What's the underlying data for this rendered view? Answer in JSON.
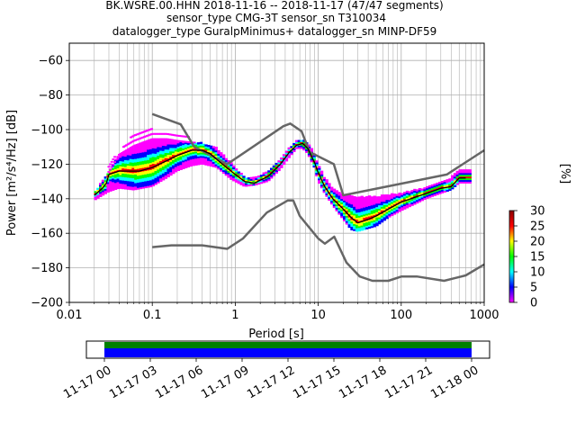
{
  "chart_data": {
    "type": "heatmap",
    "title_lines": [
      "BK.WSRE.00.HHN   2018-11-16 -- 2018-11-17  (47/47 segments)",
      "sensor_type CMG-3T sensor_sn T310034",
      "datalogger_type GuralpMinimus+ datalogger_sn MINP-DF59"
    ],
    "xlabel": "Period [s]",
    "ylabel": "Power [m²/s⁴/Hz] [dB]",
    "x_scale": "log",
    "xlim": [
      0.01,
      1000
    ],
    "ylim": [
      -200,
      -50
    ],
    "x_ticks": [
      {
        "value": 0.01,
        "label": "0.01"
      },
      {
        "value": 0.1,
        "label": "0.1"
      },
      {
        "value": 1,
        "label": "1"
      },
      {
        "value": 10,
        "label": "10"
      },
      {
        "value": 100,
        "label": "100"
      },
      {
        "value": 1000,
        "label": "1000"
      }
    ],
    "y_ticks": [
      {
        "value": -60,
        "label": "−60"
      },
      {
        "value": -80,
        "label": "−80"
      },
      {
        "value": -100,
        "label": "−100"
      },
      {
        "value": -120,
        "label": "−120"
      },
      {
        "value": -140,
        "label": "−140"
      },
      {
        "value": -160,
        "label": "−160"
      },
      {
        "value": -180,
        "label": "−180"
      },
      {
        "value": -200,
        "label": "−200"
      }
    ],
    "grid": true,
    "colorbar": {
      "label": "[%]",
      "range": [
        0,
        30
      ],
      "ticks": [
        {
          "value": 0,
          "label": "0"
        },
        {
          "value": 5,
          "label": "5"
        },
        {
          "value": 10,
          "label": "10"
        },
        {
          "value": 15,
          "label": "15"
        },
        {
          "value": 20,
          "label": "20"
        },
        {
          "value": 25,
          "label": "25"
        },
        {
          "value": 30,
          "label": "30"
        }
      ],
      "colors": [
        "#ffffff",
        "#ff00ff",
        "#0000ff",
        "#00ffff",
        "#00ff00",
        "#ffff00",
        "#ff0000",
        "#8b0000"
      ]
    },
    "models": {
      "new_high_noise_model": [
        [
          0.1,
          -91
        ],
        [
          0.22,
          -97
        ],
        [
          0.32,
          -110
        ],
        [
          0.8,
          -120
        ],
        [
          3.8,
          -98
        ],
        [
          4.6,
          -96.5
        ],
        [
          6.3,
          -101
        ],
        [
          7.9,
          -113
        ],
        [
          15.4,
          -120
        ],
        [
          20,
          -138
        ],
        [
          354.8,
          -126
        ],
        [
          1000,
          -112
        ]
      ],
      "new_low_noise_model": [
        [
          0.1,
          -168
        ],
        [
          0.17,
          -167
        ],
        [
          0.4,
          -167
        ],
        [
          0.8,
          -169
        ],
        [
          1.24,
          -163
        ],
        [
          2.4,
          -148
        ],
        [
          4.3,
          -141
        ],
        [
          5,
          -141
        ],
        [
          6,
          -150
        ],
        [
          10,
          -163
        ],
        [
          12,
          -166
        ],
        [
          15.6,
          -162
        ],
        [
          21.9,
          -177
        ],
        [
          31.6,
          -185
        ],
        [
          45,
          -187.5
        ],
        [
          70,
          -187.5
        ],
        [
          101,
          -185
        ],
        [
          154,
          -185
        ],
        [
          328,
          -187.5
        ],
        [
          600,
          -184.4
        ],
        [
          1000,
          -178
        ]
      ]
    },
    "mode": [
      [
        0.02,
        -138
      ],
      [
        0.025,
        -134
      ],
      [
        0.028,
        -131
      ],
      [
        0.03,
        -126
      ],
      [
        0.04,
        -124
      ],
      [
        0.05,
        -124
      ],
      [
        0.07,
        -124
      ],
      [
        0.1,
        -122
      ],
      [
        0.15,
        -118
      ],
      [
        0.2,
        -115
      ],
      [
        0.3,
        -112
      ],
      [
        0.4,
        -112
      ],
      [
        0.5,
        -114
      ],
      [
        0.7,
        -120
      ],
      [
        1,
        -126
      ],
      [
        1.3,
        -130
      ],
      [
        1.7,
        -131
      ],
      [
        2.5,
        -127
      ],
      [
        3.5,
        -120
      ],
      [
        4.5,
        -113
      ],
      [
        5.5,
        -109
      ],
      [
        6.5,
        -108
      ],
      [
        7.5,
        -111
      ],
      [
        9,
        -119
      ],
      [
        10,
        -125
      ],
      [
        12,
        -133
      ],
      [
        15,
        -140
      ],
      [
        20,
        -146
      ],
      [
        25,
        -151
      ],
      [
        30,
        -154
      ],
      [
        40,
        -152
      ],
      [
        50,
        -150
      ],
      [
        70,
        -146
      ],
      [
        100,
        -142
      ],
      [
        150,
        -139
      ],
      [
        200,
        -137
      ],
      [
        300,
        -134
      ],
      [
        400,
        -133
      ],
      [
        500,
        -128
      ],
      [
        600,
        -128
      ]
    ],
    "pdf_cloud": {
      "upper": [
        [
          0.02,
          -137
        ],
        [
          0.03,
          -125
        ],
        [
          0.04,
          -115
        ],
        [
          0.06,
          -110
        ],
        [
          0.1,
          -106
        ],
        [
          0.15,
          -106
        ],
        [
          0.2,
          -107
        ],
        [
          0.3,
          -108
        ],
        [
          0.4,
          -108
        ],
        [
          0.6,
          -111
        ],
        [
          0.9,
          -120
        ],
        [
          1.3,
          -128
        ],
        [
          1.8,
          -128
        ],
        [
          2.5,
          -124
        ],
        [
          3.5,
          -118
        ],
        [
          4.5,
          -111
        ],
        [
          5.5,
          -107
        ],
        [
          6.5,
          -106
        ],
        [
          7.5,
          -108
        ],
        [
          9,
          -114
        ],
        [
          10,
          -121
        ],
        [
          12,
          -128
        ],
        [
          15,
          -134
        ],
        [
          20,
          -138
        ],
        [
          30,
          -139
        ],
        [
          50,
          -139
        ],
        [
          70,
          -138
        ],
        [
          100,
          -137
        ],
        [
          150,
          -135
        ],
        [
          200,
          -134
        ],
        [
          300,
          -131
        ],
        [
          400,
          -128
        ],
        [
          500,
          -124
        ],
        [
          700,
          -124
        ]
      ],
      "lower": [
        [
          0.02,
          -141
        ],
        [
          0.03,
          -136
        ],
        [
          0.04,
          -134
        ],
        [
          0.06,
          -135
        ],
        [
          0.1,
          -133
        ],
        [
          0.15,
          -128
        ],
        [
          0.2,
          -124
        ],
        [
          0.3,
          -121
        ],
        [
          0.4,
          -120
        ],
        [
          0.6,
          -122
        ],
        [
          0.9,
          -129
        ],
        [
          1.3,
          -133
        ],
        [
          1.8,
          -132
        ],
        [
          2.5,
          -130
        ],
        [
          3.5,
          -123
        ],
        [
          4.5,
          -116
        ],
        [
          5.5,
          -111
        ],
        [
          6.5,
          -111
        ],
        [
          7.5,
          -114
        ],
        [
          9,
          -122
        ],
        [
          10,
          -130
        ],
        [
          12,
          -137
        ],
        [
          15,
          -144
        ],
        [
          20,
          -152
        ],
        [
          25,
          -158
        ],
        [
          30,
          -159
        ],
        [
          50,
          -156
        ],
        [
          70,
          -151
        ],
        [
          100,
          -147
        ],
        [
          150,
          -143
        ],
        [
          200,
          -140
        ],
        [
          300,
          -137
        ],
        [
          400,
          -135
        ],
        [
          500,
          -131
        ],
        [
          700,
          -131
        ]
      ],
      "outliers_upper": [
        [
          0.03,
          -120
        ],
        [
          0.04,
          -113
        ],
        [
          0.06,
          -103
        ],
        [
          0.08,
          -101
        ],
        [
          0.1,
          -100
        ],
        [
          0.15,
          -102
        ],
        [
          0.25,
          -103
        ],
        [
          0.35,
          -109
        ]
      ]
    },
    "timeline": {
      "tick_labels": [
        "11-17 00",
        "11-17 03",
        "11-17 06",
        "11-17 09",
        "11-17 12",
        "11-17 15",
        "11-17 18",
        "11-17 21",
        "11-18 00"
      ],
      "coverage_colors": [
        "#008000",
        "#0000ff"
      ]
    }
  }
}
